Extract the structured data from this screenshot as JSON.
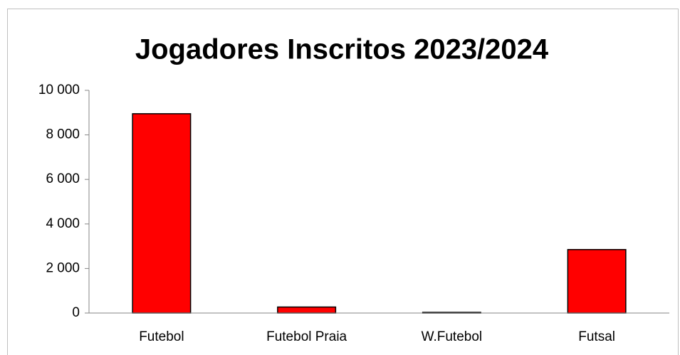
{
  "chart_data": {
    "type": "bar",
    "title": "Jogadores Inscritos 2023/2024",
    "categories": [
      "Futebol",
      "Futebol Praia",
      "W.Futebol",
      "Futsal"
    ],
    "values": [
      8950,
      270,
      30,
      2850
    ],
    "color": "#ff0000",
    "ylim": [
      0,
      10000
    ],
    "yticks": [
      0,
      {
        "value": 2000,
        "label": "2 000"
      },
      {
        "value": 4000,
        "label": "4 000"
      },
      {
        "value": 6000,
        "label": "6 000"
      },
      {
        "value": 8000,
        "label": "8 000"
      },
      {
        "value": 10000,
        "label": "10 000"
      }
    ],
    "grid": false
  }
}
